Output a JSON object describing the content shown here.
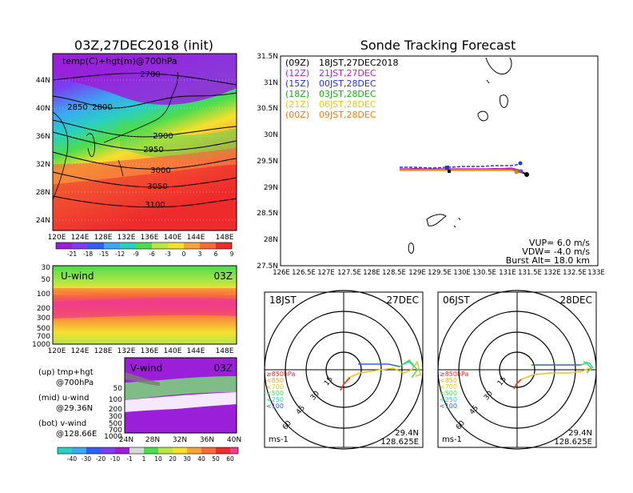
{
  "colors": {
    "purple": "#9b1fd8",
    "violet": "#7a3df0",
    "blue": "#2e5ff5",
    "sky": "#3aa8f2",
    "teal": "#29d0c0",
    "green": "#4ddc4d",
    "lime": "#b7e645",
    "yellow": "#f5e02e",
    "orange": "#f7a53a",
    "coral": "#f76a3a",
    "red": "#ee2b2b",
    "pink": "#f03c8d"
  },
  "top_left": {
    "title": "03Z,27DEC2018 (init)",
    "subtitle": "temp(C)+hgt(m)@700hPa",
    "lat_labels": [
      "44N",
      "40N",
      "36N",
      "32N",
      "28N",
      "24N"
    ],
    "lon_labels": [
      "120E",
      "124E",
      "128E",
      "132E",
      "136E",
      "140E",
      "144E",
      "148E"
    ],
    "contour_labels": [
      "2700",
      "2850",
      "2800",
      "2900",
      "2950",
      "3000",
      "3050",
      "3100"
    ],
    "colorbar_labels": [
      "-21",
      "-18",
      "-15",
      "-12",
      "-9",
      "-6",
      "-3",
      "0",
      "3",
      "6",
      "9"
    ]
  },
  "uwind": {
    "label": "U-wind",
    "time": "03Z",
    "pressure_labels": [
      "30",
      "50",
      "100",
      "200",
      "300",
      "500",
      "700",
      "1000"
    ],
    "lon_labels": [
      "120E",
      "124E",
      "128E",
      "132E",
      "136E",
      "140E",
      "144E",
      "148E"
    ]
  },
  "vwind": {
    "label": "V-wind",
    "time": "03Z",
    "pressure_labels": [
      "50",
      "100",
      "200",
      "300",
      "500",
      "700",
      "1000"
    ],
    "lat_labels": [
      "24N",
      "28N",
      "32N",
      "36N",
      "40N"
    ]
  },
  "notes": {
    "line1": "(up) tmp+hgt",
    "line2": "@700hPa",
    "line3": "(mid) u-wind",
    "line4": "@29.36N",
    "line5": "(bot) v-wind",
    "line6": "@128.66E"
  },
  "bottom_colorbar": [
    "-40",
    "-30",
    "-20",
    "-10",
    "-1",
    "1",
    "10",
    "20",
    "30",
    "40",
    "50",
    "60"
  ],
  "tracking": {
    "title": "Sonde Tracking Forecast",
    "lat_labels": [
      "31.5N",
      "31N",
      "30.5N",
      "30N",
      "29.5N",
      "29N",
      "28.5N",
      "28N",
      "27.5N"
    ],
    "lon_labels": [
      "126E",
      "126.5E",
      "127E",
      "127.5E",
      "128E",
      "128.5E",
      "129E",
      "129.5E",
      "130E",
      "130.5E",
      "131E",
      "131.5E",
      "132E",
      "132.5E",
      "133E"
    ],
    "legend": [
      {
        "code": "(09Z)",
        "time": "18JST,27DEC2018",
        "color": "#000000"
      },
      {
        "code": "(12Z)",
        "time": "21JST,27DEC",
        "color": "#c41fc4"
      },
      {
        "code": "(15Z)",
        "time": "00JST,28DEC",
        "color": "#2233ee"
      },
      {
        "code": "(18Z)",
        "time": "03JST,28DEC",
        "color": "#1aaa1a"
      },
      {
        "code": "(21Z)",
        "time": "06JST,28DEC",
        "color": "#e6c81e"
      },
      {
        "code": "(00Z)",
        "time": "09JST,28DEC",
        "color": "#f07a1e"
      }
    ],
    "vup": "VUP= 6.0 m/s",
    "vdw": "VDW= -4.0 m/s",
    "burst": "Burst Alt= 18.0 km"
  },
  "polar_left": {
    "time": "18JST",
    "date": "27DEC",
    "ring_labels": [
      "15",
      "30",
      "45",
      "60"
    ],
    "unit": "ms-1",
    "lat": "29.4N",
    "lon": "128.625E",
    "levels": [
      {
        "label": "≥850hPa",
        "color": "#ee2b2b"
      },
      {
        "label": "<850",
        "color": "#f7a53a"
      },
      {
        "label": "<700",
        "color": "#e6c81e"
      },
      {
        "label": "<500",
        "color": "#4ddc4d"
      },
      {
        "label": "<250",
        "color": "#29d0c0"
      },
      {
        "label": "<100",
        "color": "#2e5ff5"
      }
    ]
  },
  "polar_right": {
    "time": "06JST",
    "date": "28DEC",
    "ring_labels": [
      "15",
      "30",
      "45",
      "60"
    ],
    "unit": "ms-1",
    "lat": "29.4N",
    "lon": "128.625E",
    "levels": [
      {
        "label": "≥850hPa",
        "color": "#ee2b2b"
      },
      {
        "label": "<850",
        "color": "#f7a53a"
      },
      {
        "label": "<700",
        "color": "#e6c81e"
      },
      {
        "label": "<500",
        "color": "#4ddc4d"
      },
      {
        "label": "<250",
        "color": "#29d0c0"
      },
      {
        "label": "<100",
        "color": "#2e5ff5"
      }
    ]
  }
}
